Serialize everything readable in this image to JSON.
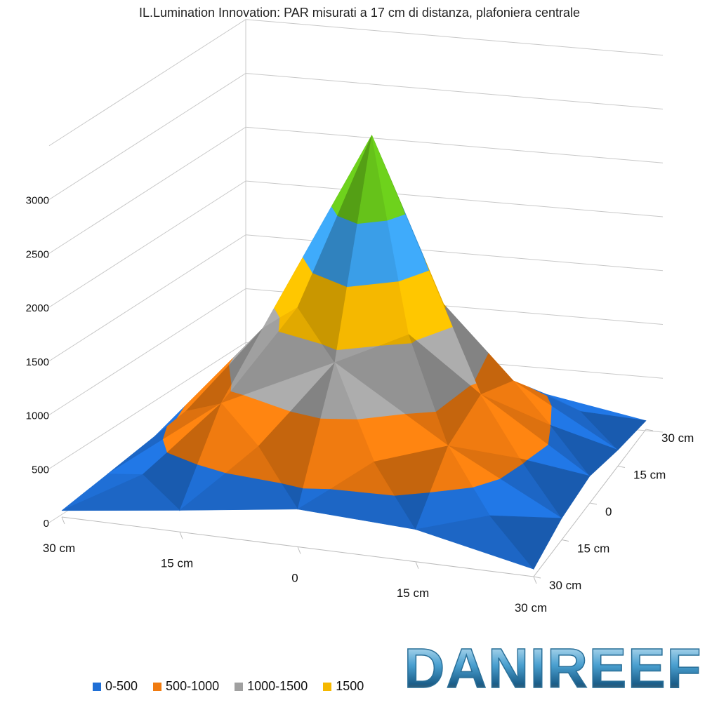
{
  "chart_data": {
    "type": "surface",
    "title": "IL.Lumination Innovation: PAR misurati a 17 cm di distanza, plafoniera centrale",
    "x_ticks": [
      "30 cm",
      "15 cm",
      "0",
      "15 cm",
      "30 cm"
    ],
    "y_ticks": [
      "30 cm",
      "15 cm",
      "0",
      "15 cm",
      "30 cm"
    ],
    "z_ticks": [
      "0",
      "500",
      "1000",
      "1500",
      "2000",
      "2500",
      "3000"
    ],
    "zlim": [
      0,
      3000
    ],
    "grid": true,
    "legend_position": "bottom",
    "bands": [
      {
        "name": "0-500",
        "color": "#1f6fd6"
      },
      {
        "name": "500-1000",
        "color": "#f07b10"
      },
      {
        "name": "1000-1500",
        "color": "#a0a0a0"
      },
      {
        "name": "1500",
        "color": "#f5b800"
      }
    ],
    "band_colors_above": [
      "#f5b800",
      "#3a9ee8",
      "#66c21a"
    ],
    "values": [
      [
        60,
        120,
        180,
        100,
        60
      ],
      [
        200,
        900,
        1300,
        900,
        150
      ],
      [
        350,
        1400,
        3200,
        1300,
        200
      ],
      [
        300,
        750,
        900,
        700,
        250
      ],
      [
        70,
        200,
        250,
        150,
        80
      ]
    ]
  },
  "watermark": {
    "text": "DANIREEF"
  }
}
